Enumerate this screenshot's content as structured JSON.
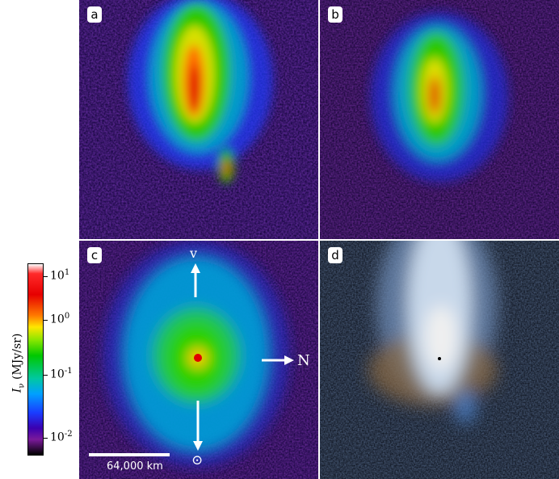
{
  "panels": [
    {
      "label": "a"
    },
    {
      "label": "b"
    },
    {
      "label": "c"
    },
    {
      "label": "d"
    }
  ],
  "annotations": {
    "velocity_label": "v",
    "north_label": "N",
    "sun_symbol": "⊙",
    "scale_bar_label": "64,000 km"
  },
  "colorbar": {
    "title_symbol": "I",
    "title_subscript": "ν",
    "title_unit": "(MJy/sr)",
    "ticks": [
      {
        "base": "10",
        "exp": "1"
      },
      {
        "base": "10",
        "exp": "0"
      },
      {
        "base": "10",
        "exp": "-1"
      },
      {
        "base": "10",
        "exp": "-2"
      }
    ]
  },
  "colors": {
    "background": "#000000",
    "annotation": "#ffffff"
  }
}
